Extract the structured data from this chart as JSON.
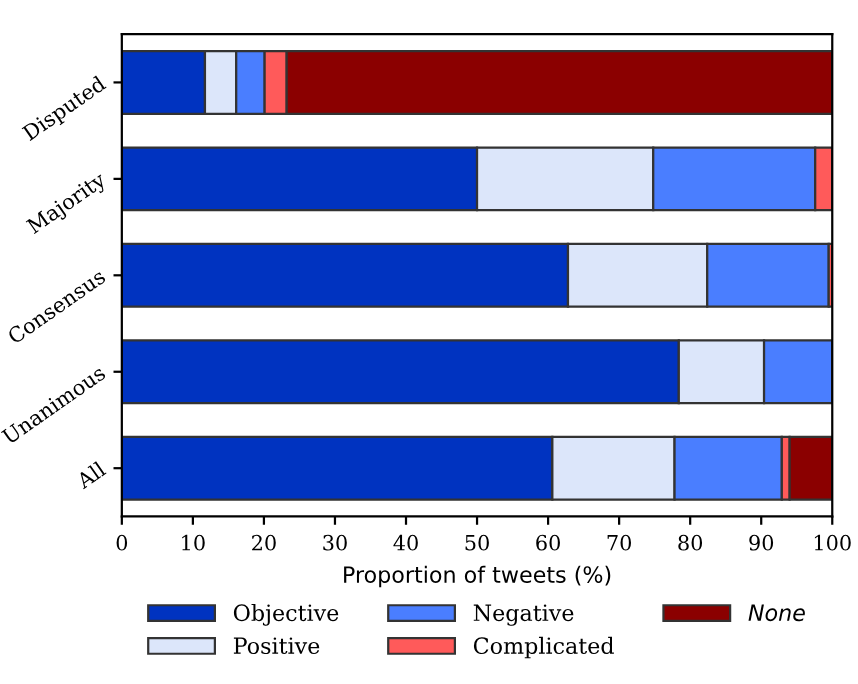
{
  "chart_data": {
    "type": "bar",
    "orientation": "horizontal",
    "stacked": true,
    "xlabel": "Proportion of tweets (%)",
    "categories": [
      "Disputed",
      "Majority",
      "Consensus",
      "Unanimous",
      "All"
    ],
    "series": [
      {
        "name": "Objective",
        "color": "#0033c0",
        "values": [
          11.7,
          50.0,
          62.8,
          78.4,
          60.6
        ]
      },
      {
        "name": "Positive",
        "color": "#dce6fa",
        "values": [
          4.4,
          24.8,
          19.6,
          12.0,
          17.2
        ]
      },
      {
        "name": "Negative",
        "color": "#4a7eff",
        "values": [
          4.0,
          22.8,
          17.1,
          9.6,
          15.1
        ]
      },
      {
        "name": "Complicated",
        "color": "#ff5a5a",
        "values": [
          3.1,
          2.4,
          0.5,
          null,
          1.1
        ]
      },
      {
        "name": "None",
        "color": "#8b0000",
        "values": [
          76.8,
          null,
          null,
          null,
          6.0
        ]
      }
    ],
    "xlim": [
      0,
      100
    ],
    "xticks": [
      0,
      10,
      20,
      30,
      40,
      50,
      60,
      70,
      80,
      90,
      100
    ],
    "grid": false,
    "legend": "bottom"
  }
}
